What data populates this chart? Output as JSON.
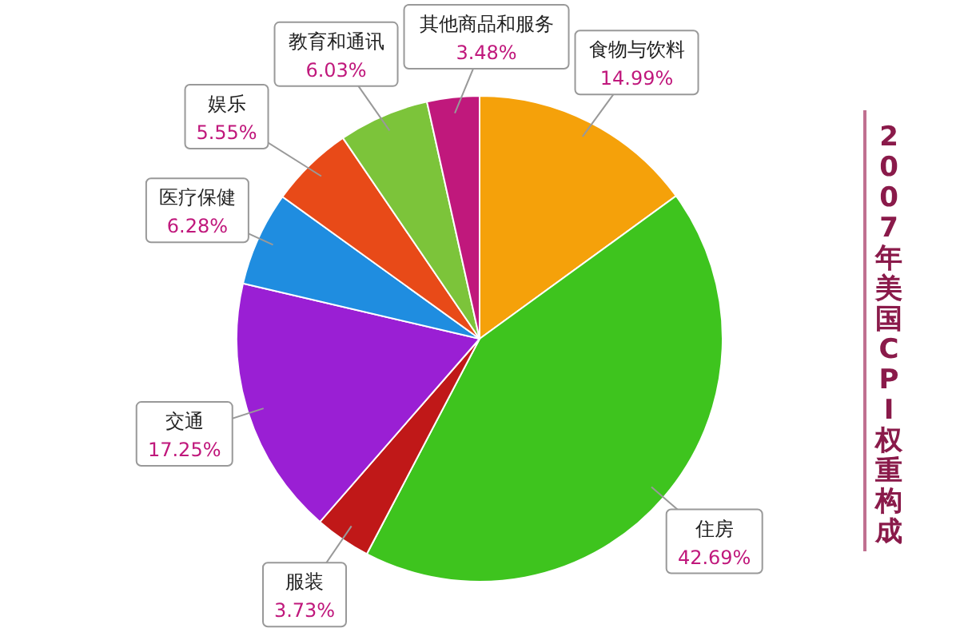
{
  "chart_data": {
    "type": "pie",
    "title": "2007年美国CPI权重构成",
    "categories": [
      "食物与饮料",
      "住房",
      "服装",
      "交通",
      "医疗保健",
      "娱乐",
      "教育和通讯",
      "其他商品和服务"
    ],
    "values": [
      14.99,
      42.69,
      3.73,
      17.25,
      6.28,
      5.55,
      6.03,
      3.48
    ],
    "colors": [
      "#f5a10a",
      "#3ec41e",
      "#c01818",
      "#9a1fd4",
      "#1f8de0",
      "#e84a18",
      "#7cc43a",
      "#c0187c"
    ],
    "value_labels": [
      "14.99%",
      "42.69%",
      "3.73%",
      "17.25%",
      "6.28%",
      "5.55%",
      "6.03%",
      "3.48%"
    ]
  }
}
